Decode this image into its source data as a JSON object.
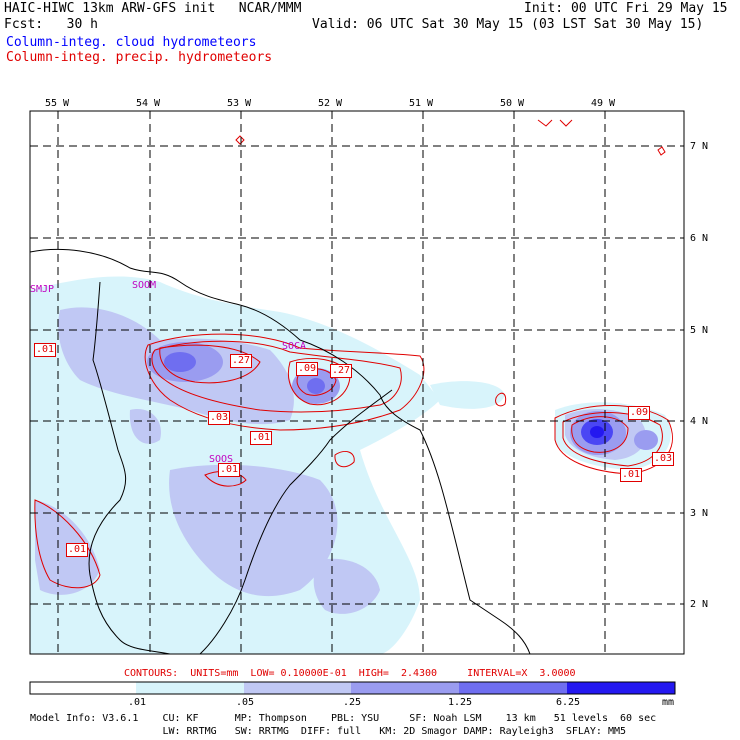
{
  "header": {
    "title": "HAIC-HIWC 13km ARW-GFS init   NCAR/MMM",
    "init": "Init: 00 UTC Fri 29 May 15",
    "fcst": "Fcst:   30 h",
    "valid": "Valid: 06 UTC Sat 30 May 15 (03 LST Sat 30 May 15)",
    "legend_cloud": "Column-integ. cloud hydrometeors",
    "legend_precip": "Column-integ. precip. hydrometeors"
  },
  "axes": {
    "lon_labels": [
      "55 W",
      "54 W",
      "53 W",
      "52 W",
      "51 W",
      "50 W",
      "49 W"
    ],
    "lat_labels": [
      "7 N",
      "6 N",
      "5 N",
      "4 N",
      "3 N",
      "2 N"
    ]
  },
  "stations": [
    "SMJP",
    "SOOM",
    "SOCA",
    "SOOS"
  ],
  "contour_labels": [
    ".01",
    ".27",
    ".09",
    ".27",
    ".03",
    ".01",
    ".01",
    ".01",
    ".09",
    ".03",
    ".01"
  ],
  "contour_info": "CONTOURS:  UNITS=mm  LOW= 0.10000E-01  HIGH=  2.4300     INTERVAL=X  3.0000",
  "colorbar": {
    "ticks": [
      ".01",
      ".05",
      ".25",
      "1.25",
      "6.25"
    ],
    "unit": "mm",
    "colors": [
      "#ffffff",
      "#d8f4fb",
      "#c0c8f4",
      "#9a9cf0",
      "#6f6ef0",
      "#4a46f4",
      "#2418f0"
    ]
  },
  "model_info": [
    "Model Info: V3.6.1    CU: KF      MP: Thompson    PBL: YSU     SF: Noah LSM    13 km   51 levels  60 sec",
    "                      LW: RRTMG   SW: RRTMG  DIFF: full   KM: 2D Smagor DAMP: Rayleigh3  SFLAY: MM5"
  ]
}
